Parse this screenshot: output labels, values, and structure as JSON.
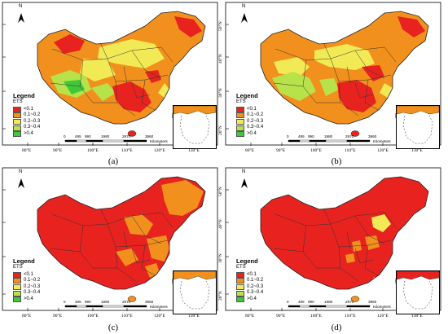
{
  "panels": [
    {
      "caption": "(a)",
      "id": "a"
    },
    {
      "caption": "(b)",
      "id": "b"
    },
    {
      "caption": "(c)",
      "id": "c"
    },
    {
      "caption": "(d)",
      "id": "d"
    }
  ],
  "legend": {
    "title": "Legend",
    "subtitle": "ETS",
    "classes": [
      {
        "label": "<0.1",
        "color": "#e8231f"
      },
      {
        "label": "0.1~0.2",
        "color": "#f2901e"
      },
      {
        "label": "0.2~0.3",
        "color": "#f2ea55"
      },
      {
        "label": "0.3~0.4",
        "color": "#b8e24a"
      },
      {
        "label": ">0.4",
        "color": "#3fc837"
      }
    ]
  },
  "north_label": "N",
  "x_ticks": [
    "80°E",
    "90°E",
    "100°E",
    "110°E",
    "120°E",
    "130°E"
  ],
  "y_ticks": [
    "20°N",
    "30°N",
    "40°N",
    "50°N"
  ],
  "scale_bar": {
    "labels": [
      "0",
      "495",
      "990",
      "1980",
      "2970",
      "3960"
    ],
    "unit": "Kilometers"
  }
}
